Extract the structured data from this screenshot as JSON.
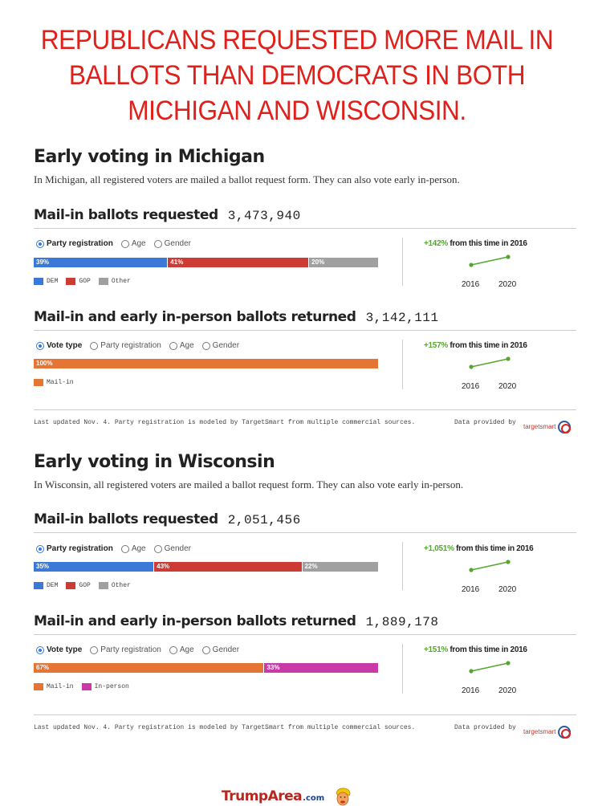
{
  "headline": "REPUBLICANS REQUESTED MORE MAIL IN BALLOTS THAN DEMOCRATS IN BOTH MICHIGAN AND WISCONSIN.",
  "colors": {
    "dem": "#3a79d8",
    "gop": "#cc3b34",
    "other": "#a0a0a0",
    "mail_in": "#e57535",
    "in_person": "#c93aa8",
    "trend_green": "#55a630"
  },
  "michigan": {
    "title": "Early voting in Michigan",
    "description": "In Michigan, all registered voters are mailed a ballot request form. They can also vote early in-person.",
    "requested": {
      "title": "Mail-in ballots requested",
      "count": "3,473,940",
      "radios": [
        "Party registration",
        "Age",
        "Gender"
      ],
      "selected": 0,
      "segments": [
        {
          "label": "39%",
          "value": 39,
          "color": "#3a79d8"
        },
        {
          "label": "41%",
          "value": 41,
          "color": "#cc3b34"
        },
        {
          "label": "20%",
          "value": 20,
          "color": "#a0a0a0"
        }
      ],
      "legend": [
        {
          "label": "DEM",
          "color": "#3a79d8"
        },
        {
          "label": "GOP",
          "color": "#cc3b34"
        },
        {
          "label": "Other",
          "color": "#a0a0a0"
        }
      ],
      "trend": {
        "pct": "+142%",
        "text": " from this time in 2016",
        "year1": "2016",
        "year2": "2020"
      }
    },
    "returned": {
      "title": "Mail-in and early in-person ballots returned",
      "count": "3,142,111",
      "radios": [
        "Vote type",
        "Party registration",
        "Age",
        "Gender"
      ],
      "selected": 0,
      "segments": [
        {
          "label": "100%",
          "value": 100,
          "color": "#e57535"
        }
      ],
      "legend": [
        {
          "label": "Mail-in",
          "color": "#e57535"
        }
      ],
      "trend": {
        "pct": "+157%",
        "text": " from this time in 2016",
        "year1": "2016",
        "year2": "2020"
      }
    },
    "footer": {
      "note": "Last updated Nov. 4. Party registration is modeled by TargetSmart from multiple commercial sources.",
      "provided": "Data provided by",
      "logo": "targetsmart"
    }
  },
  "wisconsin": {
    "title": "Early voting in Wisconsin",
    "description": "In Wisconsin, all registered voters are mailed a ballot request form. They can also vote early in-person.",
    "requested": {
      "title": "Mail-in ballots requested",
      "count": "2,051,456",
      "radios": [
        "Party registration",
        "Age",
        "Gender"
      ],
      "selected": 0,
      "segments": [
        {
          "label": "35%",
          "value": 35,
          "color": "#3a79d8"
        },
        {
          "label": "43%",
          "value": 43,
          "color": "#cc3b34"
        },
        {
          "label": "22%",
          "value": 22,
          "color": "#a0a0a0"
        }
      ],
      "legend": [
        {
          "label": "DEM",
          "color": "#3a79d8"
        },
        {
          "label": "GOP",
          "color": "#cc3b34"
        },
        {
          "label": "Other",
          "color": "#a0a0a0"
        }
      ],
      "trend": {
        "pct": "+1,051%",
        "text": " from this time in 2016",
        "year1": "2016",
        "year2": "2020"
      }
    },
    "returned": {
      "title": "Mail-in and early in-person ballots returned",
      "count": "1,889,178",
      "radios": [
        "Vote type",
        "Party registration",
        "Age",
        "Gender"
      ],
      "selected": 0,
      "segments": [
        {
          "label": "67%",
          "value": 67,
          "color": "#e57535"
        },
        {
          "label": "33%",
          "value": 33,
          "color": "#c93aa8"
        }
      ],
      "legend": [
        {
          "label": "Mail-in",
          "color": "#e57535"
        },
        {
          "label": "In-person",
          "color": "#c93aa8"
        }
      ],
      "trend": {
        "pct": "+151%",
        "text": " from this time in 2016",
        "year1": "2016",
        "year2": "2020"
      }
    },
    "footer": {
      "note": "Last updated Nov. 4. Party registration is modeled by TargetSmart from multiple commercial sources.",
      "provided": "Data provided by",
      "logo": "targetsmart"
    }
  },
  "brand": {
    "name": "TrumpArea",
    "tld": ".com",
    "icon": "trump-cartoon-face-icon"
  }
}
